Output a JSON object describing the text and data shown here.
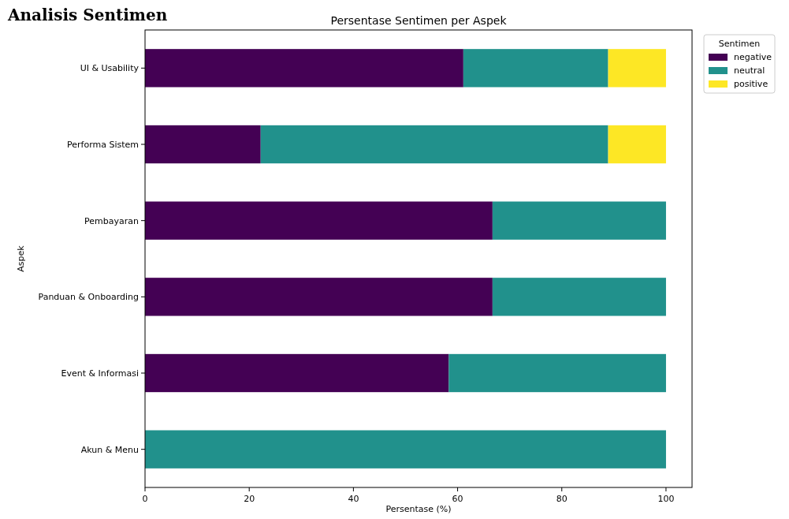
{
  "chart_data": {
    "type": "bar",
    "orientation": "horizontal",
    "stacked": true,
    "title": "Persentase Sentimen per Aspek",
    "xlabel": "Persentase (%)",
    "ylabel": "Aspek",
    "legend_title": "Sentimen",
    "legend": "top right",
    "annotations": [
      "Analisis Sentimen"
    ],
    "categories": [
      "UI & Usability",
      "Performa Sistem",
      "Pembayaran",
      "Panduan & Onboarding",
      "Event & Informasi",
      "Akun & Menu"
    ],
    "xlim": [
      0,
      105
    ],
    "xticks": [
      0,
      20,
      40,
      60,
      80,
      100
    ],
    "series": [
      {
        "name": "negative",
        "color": "#440154",
        "values": [
          61.1,
          22.2,
          66.7,
          66.7,
          58.3,
          0
        ]
      },
      {
        "name": "neutral",
        "color": "#21918c",
        "values": [
          27.8,
          66.7,
          33.3,
          33.3,
          41.7,
          100
        ]
      },
      {
        "name": "positive",
        "color": "#fde725",
        "values": [
          11.1,
          11.1,
          0,
          0,
          0,
          0
        ]
      }
    ]
  }
}
